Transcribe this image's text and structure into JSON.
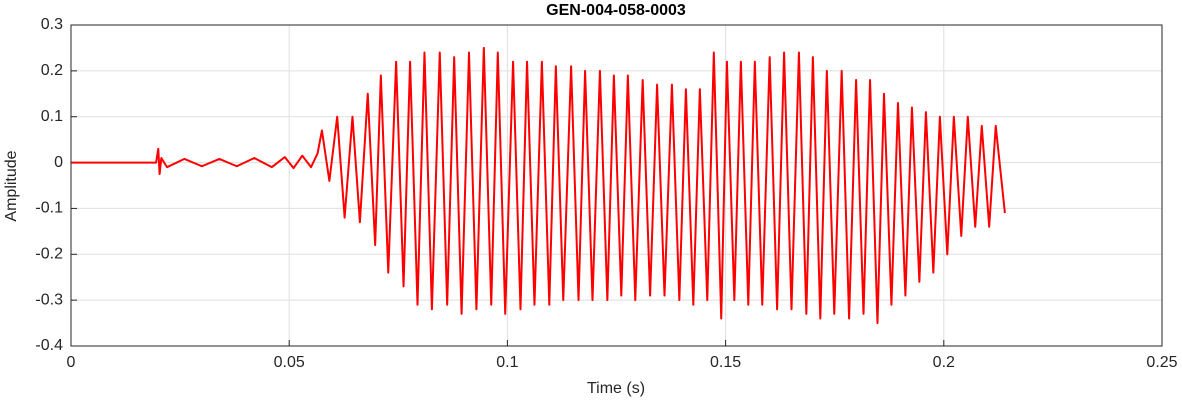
{
  "chart_data": {
    "type": "line",
    "title": "GEN-004-058-0003",
    "xlabel": "Time (s)",
    "ylabel": "Amplitude",
    "color": "#ff0000",
    "grid": true,
    "xlim": [
      0,
      0.25
    ],
    "xticks": [
      0,
      0.05,
      0.1,
      0.15,
      0.2,
      0.25
    ],
    "ylim": [
      -0.4,
      0.3
    ],
    "yticks": [
      -0.4,
      -0.3,
      -0.2,
      -0.1,
      0,
      0.1,
      0.2,
      0.3
    ],
    "x": [
      0,
      0.0195,
      0.02,
      0.0203,
      0.0207,
      0.022,
      0.026,
      0.03,
      0.034,
      0.038,
      0.042,
      0.046,
      0.049,
      0.051,
      0.053,
      0.055,
      0.0565,
      0.0575,
      0.0592,
      0.061,
      0.0627,
      0.0645,
      0.0662,
      0.068,
      0.0697,
      0.071,
      0.0727,
      0.0745,
      0.0762,
      0.0777,
      0.0794,
      0.081,
      0.0827,
      0.0845,
      0.0862,
      0.0878,
      0.0895,
      0.0912,
      0.0929,
      0.0946,
      0.0963,
      0.0978,
      0.0995,
      0.1013,
      0.103,
      0.1045,
      0.1062,
      0.1079,
      0.1096,
      0.1111,
      0.1128,
      0.1146,
      0.1163,
      0.1178,
      0.1195,
      0.1212,
      0.1229,
      0.1244,
      0.1261,
      0.1276,
      0.1293,
      0.131,
      0.1327,
      0.1343,
      0.136,
      0.1377,
      0.1394,
      0.1409,
      0.1426,
      0.1441,
      0.1458,
      0.1473,
      0.149,
      0.1503,
      0.152,
      0.1535,
      0.1552,
      0.1567,
      0.1584,
      0.1601,
      0.1618,
      0.1634,
      0.1651,
      0.1668,
      0.1685,
      0.17,
      0.1717,
      0.1732,
      0.1749,
      0.1766,
      0.1783,
      0.1799,
      0.1816,
      0.1831,
      0.1848,
      0.1863,
      0.188,
      0.1895,
      0.1912,
      0.1927,
      0.1944,
      0.1959,
      0.1976,
      0.1991,
      0.2008,
      0.2023,
      0.204,
      0.2055,
      0.2072,
      0.2087,
      0.2104,
      0.2119,
      0.214
    ],
    "values": [
      0,
      0,
      0.03,
      -0.025,
      0.01,
      -0.01,
      0.008,
      -0.008,
      0.008,
      -0.008,
      0.01,
      -0.01,
      0.012,
      -0.012,
      0.015,
      -0.01,
      0.02,
      0.07,
      -0.04,
      0.1,
      -0.12,
      0.1,
      -0.13,
      0.15,
      -0.18,
      0.19,
      -0.24,
      0.22,
      -0.27,
      0.22,
      -0.31,
      0.24,
      -0.32,
      0.24,
      -0.31,
      0.23,
      -0.33,
      0.24,
      -0.32,
      0.25,
      -0.31,
      0.24,
      -0.33,
      0.22,
      -0.32,
      0.22,
      -0.31,
      0.22,
      -0.31,
      0.21,
      -0.3,
      0.21,
      -0.3,
      0.2,
      -0.3,
      0.2,
      -0.3,
      0.19,
      -0.29,
      0.19,
      -0.3,
      0.18,
      -0.29,
      0.17,
      -0.29,
      0.17,
      -0.3,
      0.16,
      -0.31,
      0.16,
      -0.3,
      0.24,
      -0.34,
      0.22,
      -0.3,
      0.22,
      -0.31,
      0.22,
      -0.31,
      0.23,
      -0.32,
      0.24,
      -0.32,
      0.24,
      -0.33,
      0.23,
      -0.34,
      0.2,
      -0.33,
      0.2,
      -0.34,
      0.18,
      -0.33,
      0.18,
      -0.35,
      0.15,
      -0.31,
      0.13,
      -0.29,
      0.12,
      -0.26,
      0.11,
      -0.24,
      0.1,
      -0.2,
      0.1,
      -0.16,
      0.1,
      -0.14,
      0.08,
      -0.14,
      0.08,
      -0.11
    ]
  }
}
